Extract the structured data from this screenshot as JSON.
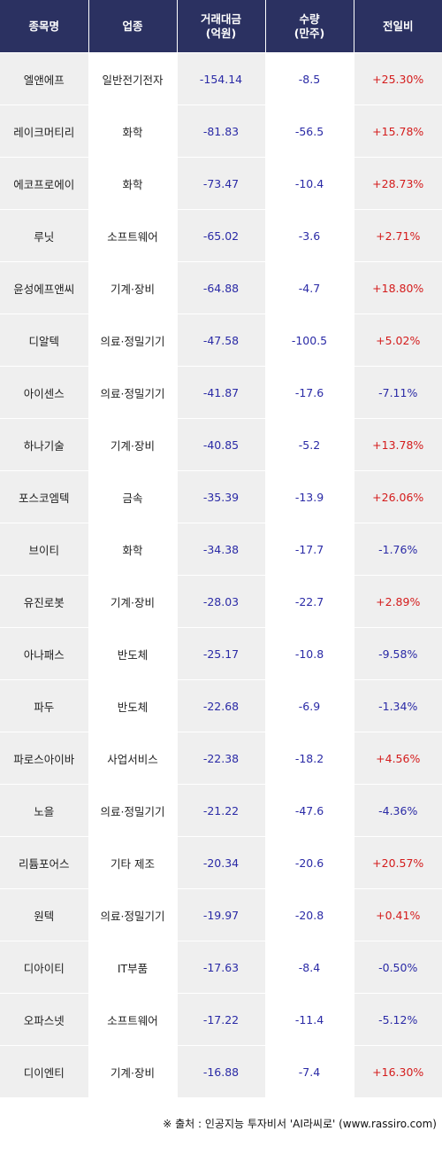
{
  "headers": {
    "name": "종목명",
    "sector": "업종",
    "amount_line1": "거래대금",
    "amount_line2": "(억원)",
    "volume_line1": "수량",
    "volume_line2": "(만주)",
    "change": "전일비"
  },
  "rows": [
    {
      "name": "엘앤에프",
      "sector": "일반전기전자",
      "amount": "-154.14",
      "volume": "-8.5",
      "change": "+25.30%"
    },
    {
      "name": "레이크머티리",
      "sector": "화학",
      "amount": "-81.83",
      "volume": "-56.5",
      "change": "+15.78%"
    },
    {
      "name": "에코프로에이",
      "sector": "화학",
      "amount": "-73.47",
      "volume": "-10.4",
      "change": "+28.73%"
    },
    {
      "name": "루닛",
      "sector": "소프트웨어",
      "amount": "-65.02",
      "volume": "-3.6",
      "change": "+2.71%"
    },
    {
      "name": "윤성에프앤씨",
      "sector": "기계·장비",
      "amount": "-64.88",
      "volume": "-4.7",
      "change": "+18.80%"
    },
    {
      "name": "디알텍",
      "sector": "의료·정밀기기",
      "amount": "-47.58",
      "volume": "-100.5",
      "change": "+5.02%"
    },
    {
      "name": "아이센스",
      "sector": "의료·정밀기기",
      "amount": "-41.87",
      "volume": "-17.6",
      "change": "-7.11%"
    },
    {
      "name": "하나기술",
      "sector": "기계·장비",
      "amount": "-40.85",
      "volume": "-5.2",
      "change": "+13.78%"
    },
    {
      "name": "포스코엠텍",
      "sector": "금속",
      "amount": "-35.39",
      "volume": "-13.9",
      "change": "+26.06%"
    },
    {
      "name": "브이티",
      "sector": "화학",
      "amount": "-34.38",
      "volume": "-17.7",
      "change": "-1.76%"
    },
    {
      "name": "유진로봇",
      "sector": "기계·장비",
      "amount": "-28.03",
      "volume": "-22.7",
      "change": "+2.89%"
    },
    {
      "name": "아나패스",
      "sector": "반도체",
      "amount": "-25.17",
      "volume": "-10.8",
      "change": "-9.58%"
    },
    {
      "name": "파두",
      "sector": "반도체",
      "amount": "-22.68",
      "volume": "-6.9",
      "change": "-1.34%"
    },
    {
      "name": "파로스아이바",
      "sector": "사업서비스",
      "amount": "-22.38",
      "volume": "-18.2",
      "change": "+4.56%"
    },
    {
      "name": "노을",
      "sector": "의료·정밀기기",
      "amount": "-21.22",
      "volume": "-47.6",
      "change": "-4.36%"
    },
    {
      "name": "리튬포어스",
      "sector": "기타 제조",
      "amount": "-20.34",
      "volume": "-20.6",
      "change": "+20.57%"
    },
    {
      "name": "원텍",
      "sector": "의료·정밀기기",
      "amount": "-19.97",
      "volume": "-20.8",
      "change": "+0.41%"
    },
    {
      "name": "디아이티",
      "sector": "IT부품",
      "amount": "-17.63",
      "volume": "-8.4",
      "change": "-0.50%"
    },
    {
      "name": "오파스넷",
      "sector": "소프트웨어",
      "amount": "-17.22",
      "volume": "-11.4",
      "change": "-5.12%"
    },
    {
      "name": "디이엔티",
      "sector": "기계·장비",
      "amount": "-16.88",
      "volume": "-7.4",
      "change": "+16.30%"
    }
  ],
  "source": "※ 출처 : 인공지능 투자비서 'AI라씨로' (www.rassiro.com)",
  "colors": {
    "header_bg": "#2b3161",
    "positive": "#d41c1c",
    "negative": "#2a2aa6",
    "stripe": "#efefef"
  }
}
